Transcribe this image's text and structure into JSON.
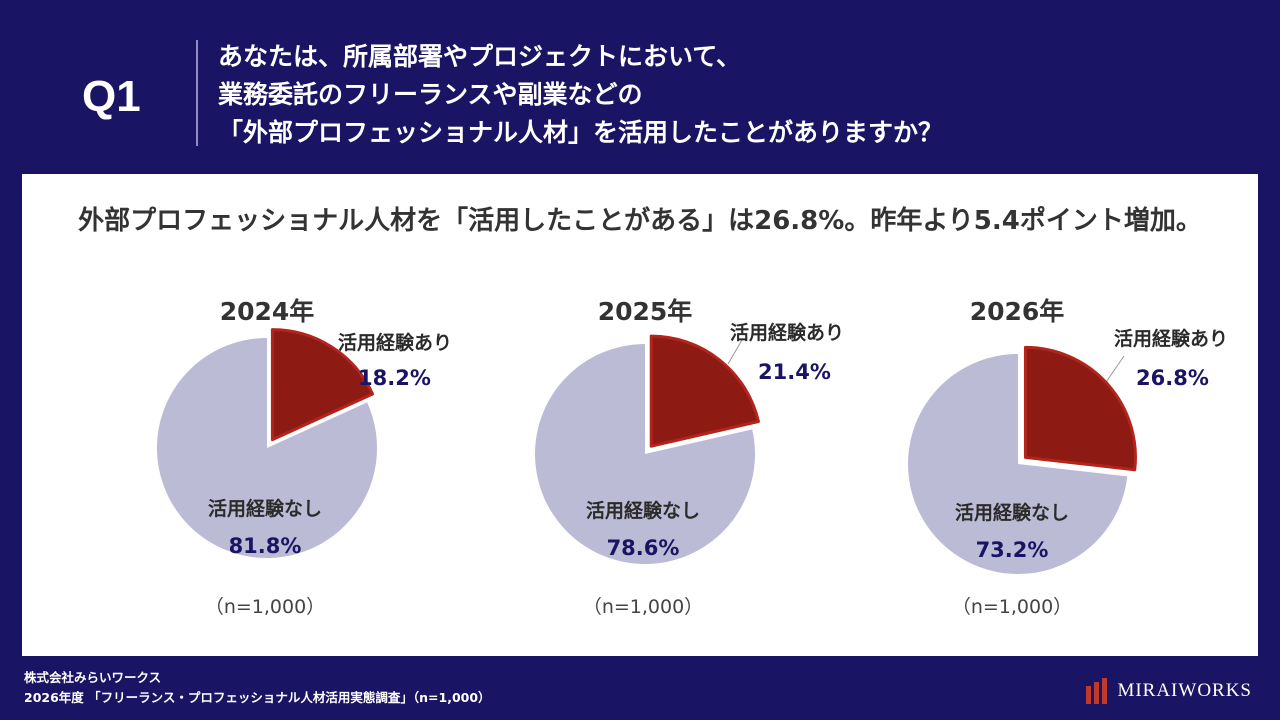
{
  "header": {
    "q_label": "Q1",
    "question_lines": [
      "あなたは、所属部署やプロジェクトにおいて、",
      "業務委託のフリーランスや副業などの",
      "「外部プロフェッショナル人材」を活用したことがありますか？"
    ]
  },
  "headline": "外部プロフェッショナル人材を「活用したことがある」は26.8%。昨年より5.4ポイント増加。",
  "colors": {
    "background": "#1a1464",
    "yes_slice": "#8e1a14",
    "yes_slice_stroke": "#b3241c",
    "no_slice": "#bcbbd6",
    "value_text": "#1a1464"
  },
  "chart_data": [
    {
      "type": "pie",
      "title": "2024年",
      "slices": [
        {
          "label": "活用経験あり",
          "value": 18.2,
          "display": "18.2%"
        },
        {
          "label": "活用経験なし",
          "value": 81.8,
          "display": "81.8%"
        }
      ],
      "note": "（n=1,000）"
    },
    {
      "type": "pie",
      "title": "2025年",
      "slices": [
        {
          "label": "活用経験あり",
          "value": 21.4,
          "display": "21.4%"
        },
        {
          "label": "活用経験なし",
          "value": 78.6,
          "display": "78.6%"
        }
      ],
      "note": "（n=1,000）"
    },
    {
      "type": "pie",
      "title": "2026年",
      "slices": [
        {
          "label": "活用経験あり",
          "value": 26.8,
          "display": "26.8%"
        },
        {
          "label": "活用経験なし",
          "value": 73.2,
          "display": "73.2%"
        }
      ],
      "note": "（n=1,000）"
    }
  ],
  "footer": {
    "company": "株式会社みらいワークス",
    "source": "2026年度 「フリーランス・プロフェッショナル人材活用実態調査」（n=1,000）"
  },
  "logo": {
    "text": "MIRAIWORKS"
  }
}
